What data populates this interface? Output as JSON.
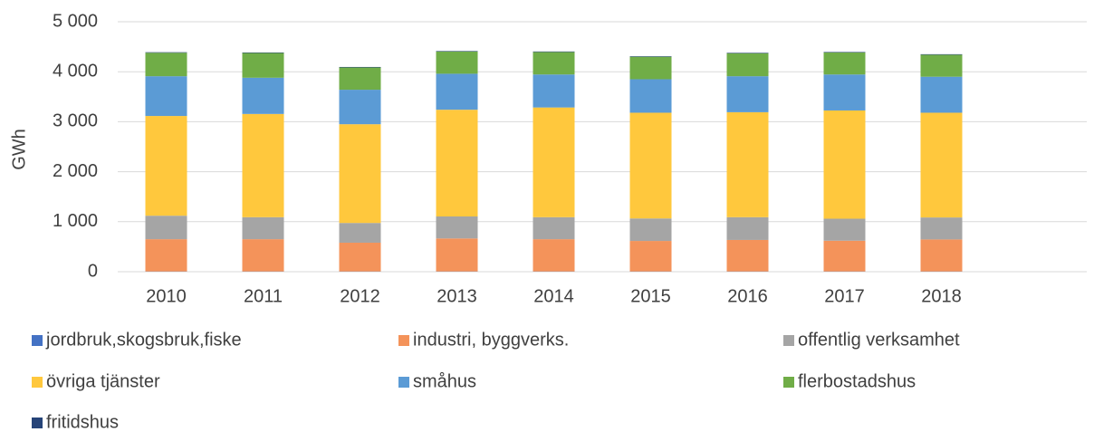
{
  "chart_data": {
    "type": "stacked_bar",
    "y_label": "GWh",
    "categories": [
      "2010",
      "2011",
      "2012",
      "2013",
      "2014",
      "2015",
      "2016",
      "2017",
      "2018",
      null
    ],
    "series": [
      {
        "name": "jordbruk,skogsbruk,fiske",
        "color": "#4472c4",
        "values": [
          5,
          5,
          5,
          5,
          5,
          5,
          5,
          5,
          5,
          null
        ]
      },
      {
        "name": "industri, byggverks.",
        "color": "#f4935a",
        "values": [
          645,
          645,
          575,
          660,
          645,
          610,
          630,
          615,
          640,
          null
        ]
      },
      {
        "name": "offentlig verksamhet",
        "color": "#a5a5a5",
        "values": [
          470,
          440,
          395,
          440,
          440,
          450,
          455,
          440,
          440,
          null
        ]
      },
      {
        "name": "övriga tjänster",
        "color": "#ffc83d",
        "values": [
          1995,
          2065,
          1975,
          2135,
          2195,
          2115,
          2100,
          2165,
          2095,
          null
        ]
      },
      {
        "name": "småhus",
        "color": "#5b9bd5",
        "values": [
          795,
          725,
          690,
          720,
          660,
          670,
          720,
          720,
          720,
          null
        ]
      },
      {
        "name": "flerbostadshus",
        "color": "#70ad47",
        "values": [
          470,
          495,
          445,
          445,
          450,
          450,
          460,
          440,
          440,
          null
        ]
      },
      {
        "name": "fritidshus",
        "color": "#264478",
        "values": [
          10,
          10,
          10,
          10,
          10,
          10,
          10,
          10,
          10,
          null
        ]
      }
    ],
    "ylim": [
      0,
      5000
    ],
    "yticks": [
      0,
      {
        "value": 1000,
        "label": "1 000"
      },
      {
        "value": 2000,
        "label": "2 000"
      },
      {
        "value": 3000,
        "label": "3 000"
      },
      {
        "value": 4000,
        "label": "4 000"
      },
      {
        "value": 5000,
        "label": "5 000"
      }
    ],
    "grid": true,
    "legend": "bottom"
  }
}
